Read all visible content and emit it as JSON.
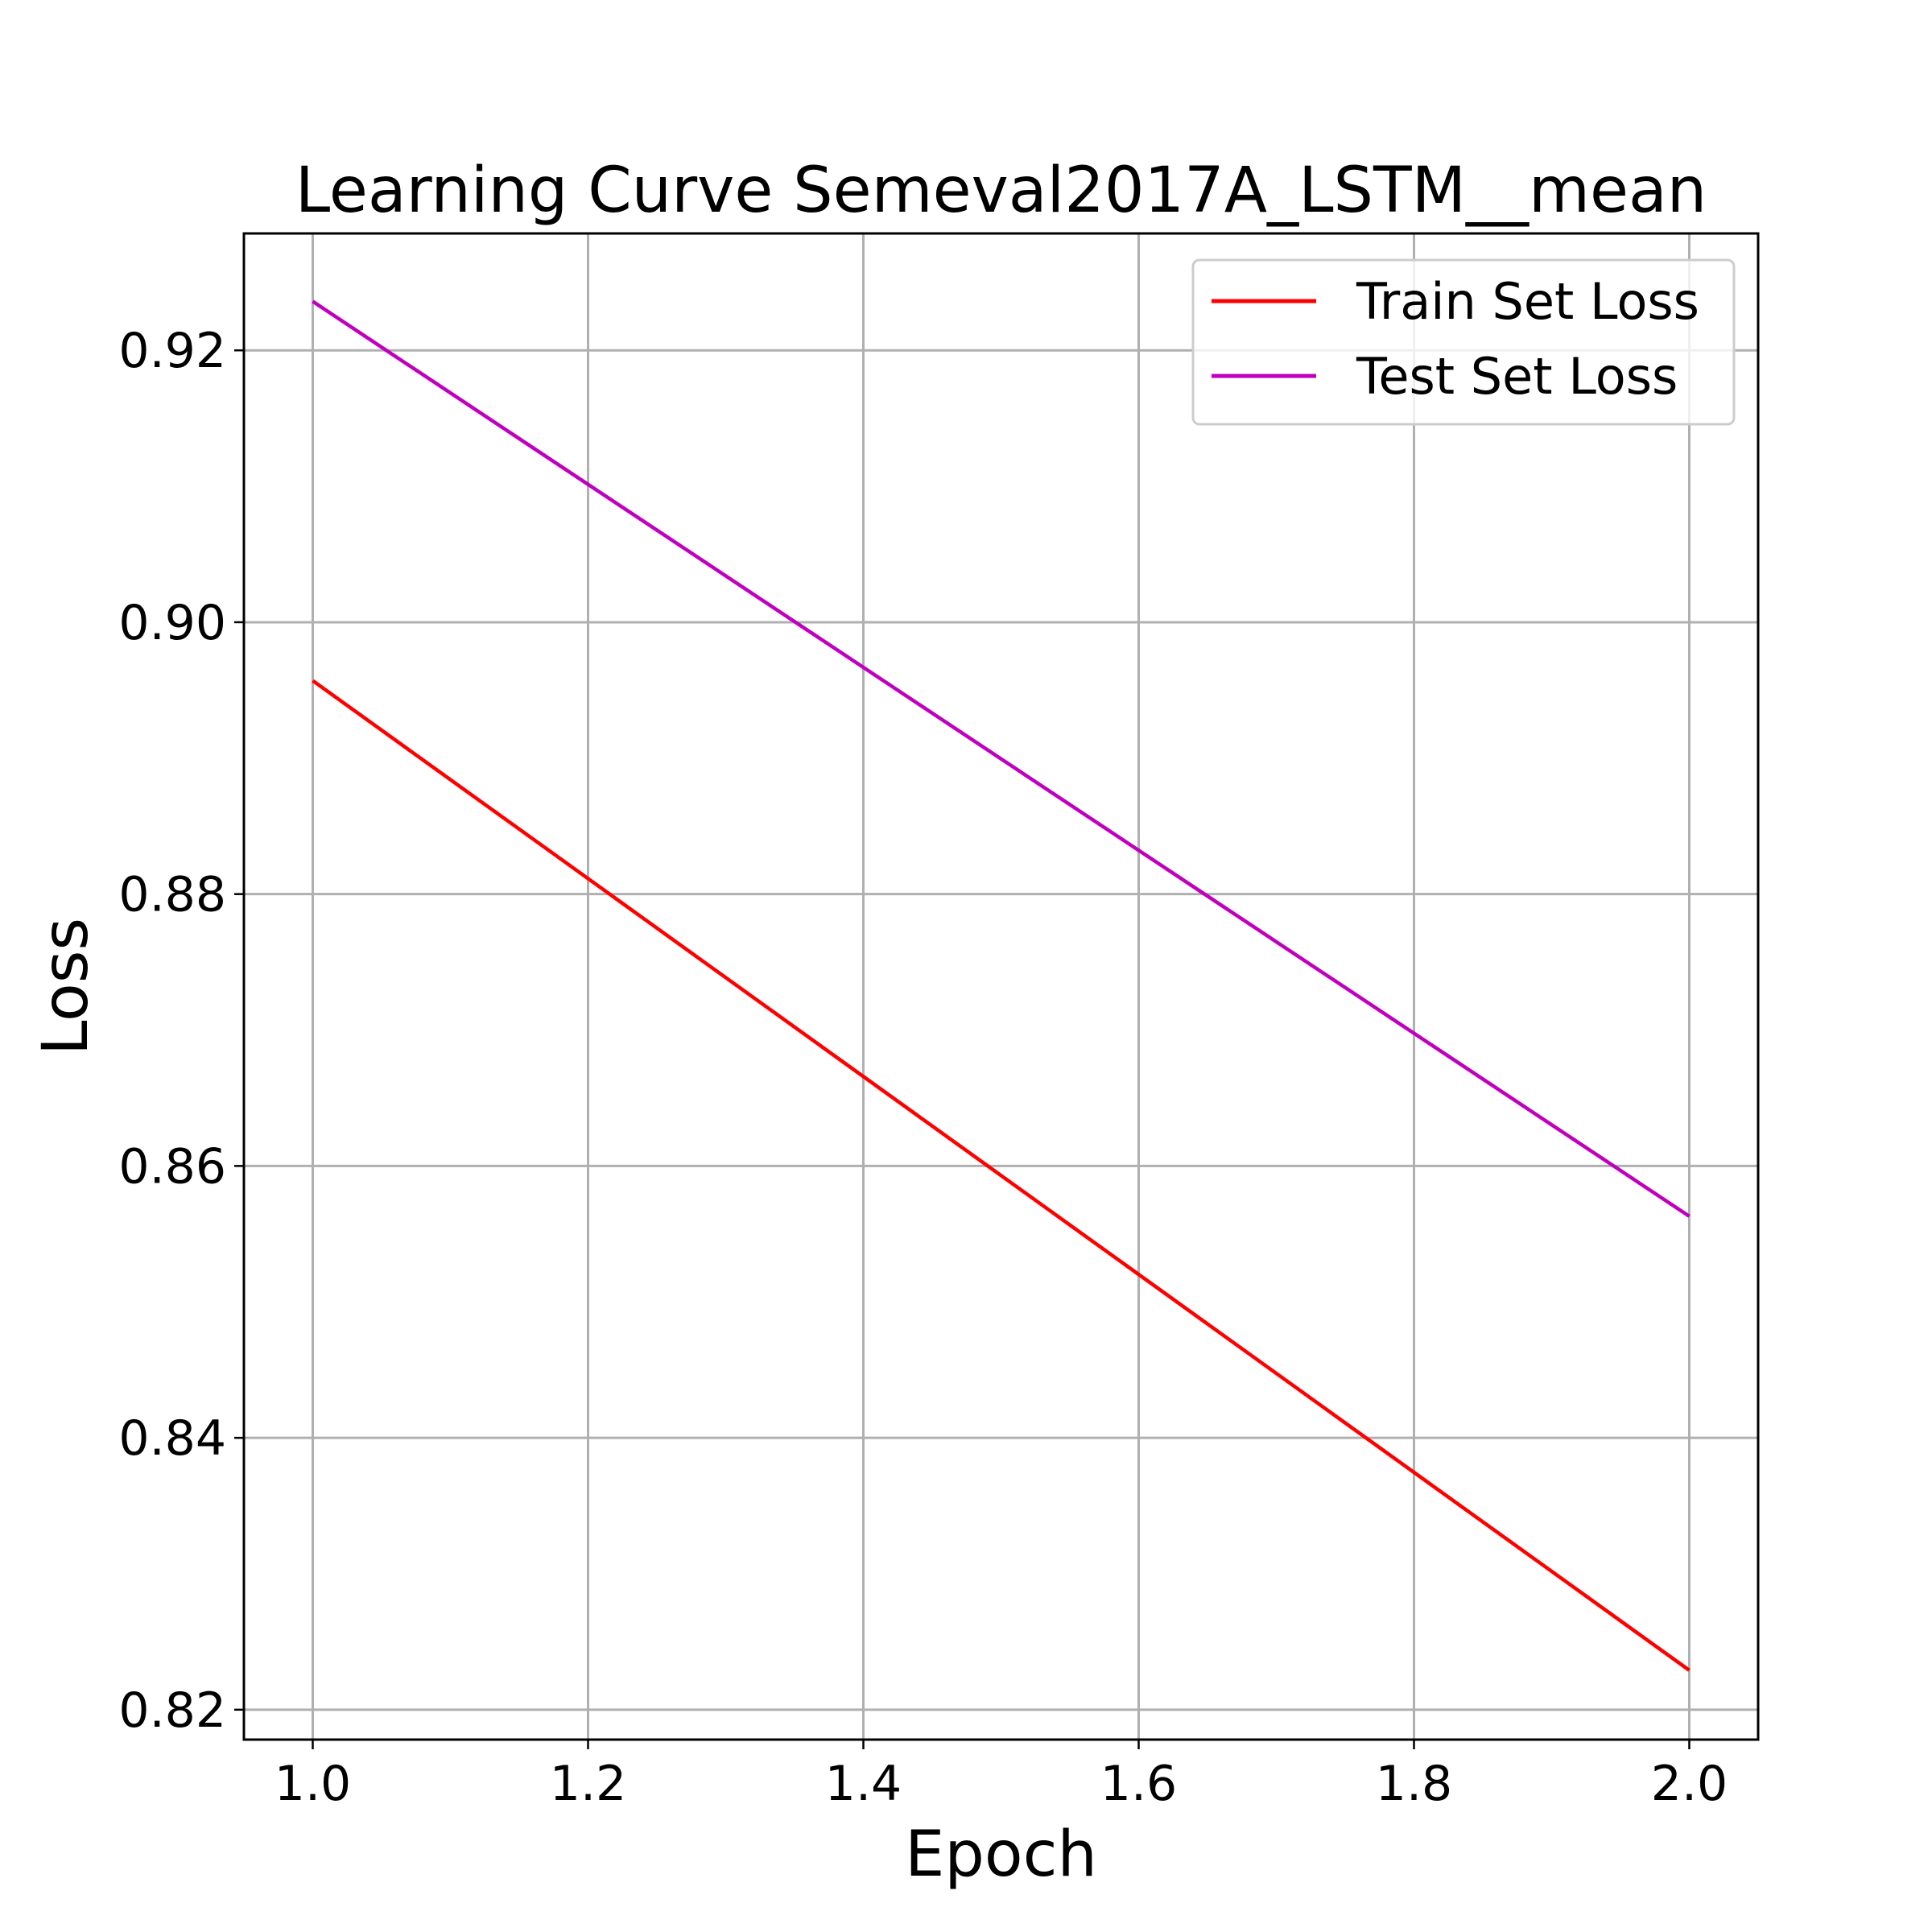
{
  "chart_data": {
    "type": "line",
    "title": "Learning Curve Semeval2017A_LSTM__mean",
    "xlabel": "Epoch",
    "ylabel": "Loss",
    "xlim": [
      0.95,
      2.05
    ],
    "ylim": [
      0.8178,
      0.9286
    ],
    "xticks": [
      1.0,
      1.2,
      1.4,
      1.6,
      1.8,
      2.0
    ],
    "xtick_labels": [
      "1.0",
      "1.2",
      "1.4",
      "1.6",
      "1.8",
      "2.0"
    ],
    "yticks": [
      0.82,
      0.84,
      0.86,
      0.88,
      0.9,
      0.92
    ],
    "ytick_labels": [
      "0.82",
      "0.84",
      "0.86",
      "0.88",
      "0.90",
      "0.92"
    ],
    "grid": true,
    "legend_position": "top-right",
    "x": [
      1,
      2
    ],
    "series": [
      {
        "name": "Train Set Loss",
        "color": "#ff0000",
        "values": [
          0.8957,
          0.8229
        ]
      },
      {
        "name": "Test Set Loss",
        "color": "#bf00bf",
        "values": [
          0.9236,
          0.8563
        ]
      }
    ]
  }
}
